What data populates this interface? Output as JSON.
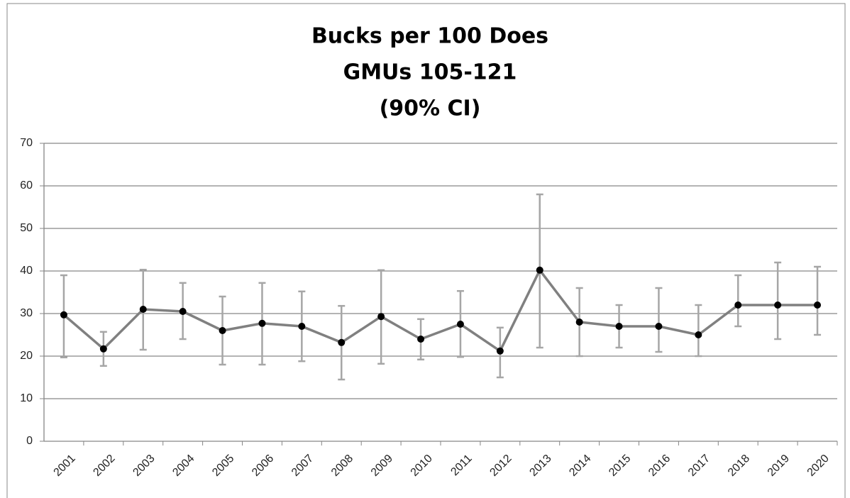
{
  "chart_data": {
    "type": "line",
    "title": [
      "Bucks per 100 Does",
      "GMUs 105-121",
      "(90% CI)"
    ],
    "categories": [
      "2001",
      "2002",
      "2003",
      "2004",
      "2005",
      "2006",
      "2007",
      "2008",
      "2009",
      "2010",
      "2011",
      "2012",
      "2013",
      "2014",
      "2015",
      "2016",
      "2017",
      "2018",
      "2019",
      "2020"
    ],
    "series": [
      {
        "color": "#808080",
        "marker_color": "#000000",
        "error_color": "#a6a6a6",
        "values": [
          29.7,
          21.7,
          31,
          30.5,
          26,
          27.7,
          27,
          23.2,
          29.3,
          24,
          27.5,
          21.2,
          40.2,
          28,
          27,
          27,
          25,
          32,
          32,
          32
        ],
        "ci_low": [
          19.7,
          17.7,
          21.5,
          24,
          18,
          18,
          18.8,
          14.5,
          18.2,
          19.2,
          19.8,
          15,
          22,
          20,
          22,
          21,
          20,
          27,
          24,
          25
        ],
        "ci_high": [
          39,
          25.7,
          40.3,
          37.2,
          34,
          37.2,
          35.2,
          31.8,
          40.2,
          28.7,
          35.3,
          26.7,
          58,
          36,
          32,
          36,
          32,
          39,
          42,
          41
        ]
      }
    ],
    "ylim": [
      0,
      70
    ],
    "yticks": [
      0,
      10,
      20,
      30,
      40,
      50,
      60,
      70
    ],
    "grid": true
  }
}
